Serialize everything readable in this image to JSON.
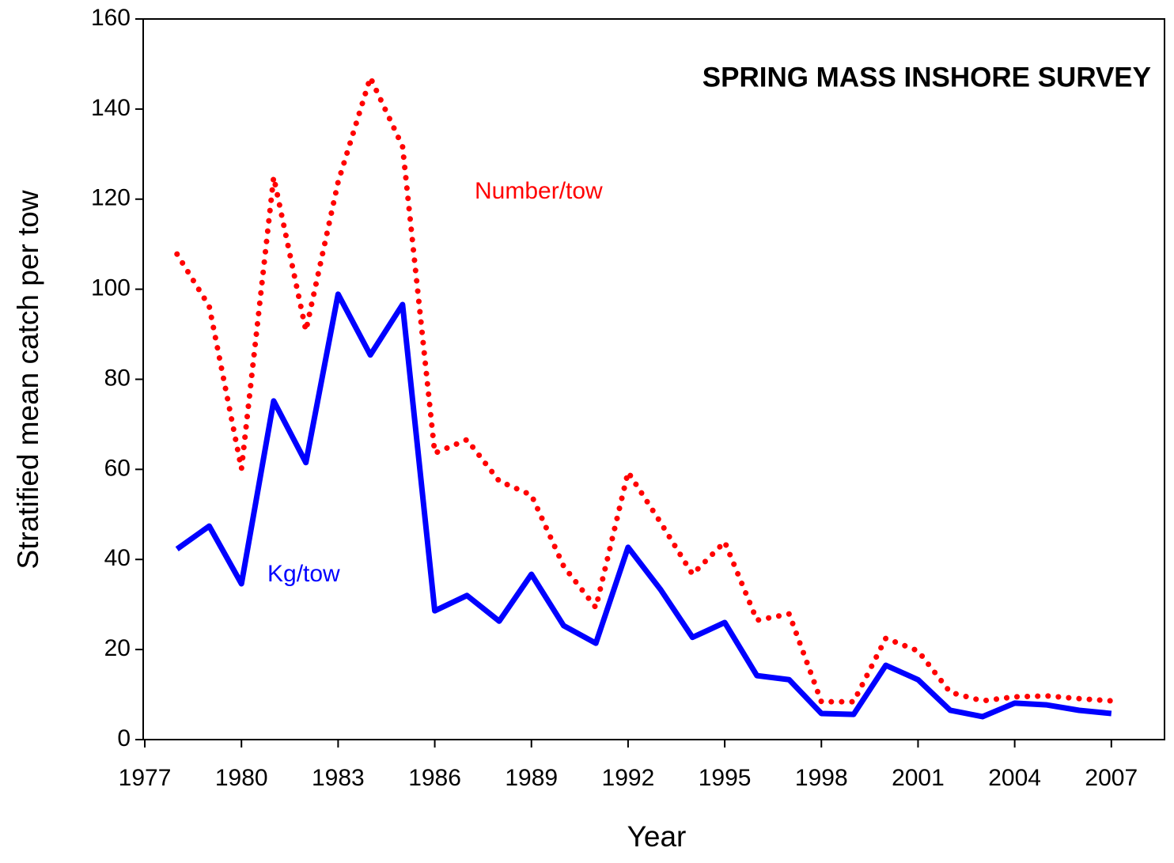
{
  "chart_data": {
    "type": "line",
    "title": "SPRING MASS INSHORE SURVEY",
    "x_label": "Year",
    "y_label": "Stratified mean catch per tow",
    "x": [
      1978,
      1979,
      1980,
      1981,
      1982,
      1983,
      1984,
      1985,
      1986,
      1987,
      1988,
      1989,
      1990,
      1991,
      1992,
      1993,
      1994,
      1995,
      1996,
      1997,
      1998,
      1999,
      2000,
      2001,
      2002,
      2003,
      2004,
      2005,
      2006,
      2007
    ],
    "series": [
      {
        "name": "Number/tow",
        "color": "#ff0000",
        "style": "dotted",
        "values": [
          107.8,
          96.2,
          60.1,
          124.9,
          90.8,
          123.8,
          147.0,
          131.7,
          63.6,
          66.6,
          57.4,
          54.3,
          38.5,
          29.3,
          59.4,
          48.3,
          36.7,
          43.9,
          26.5,
          27.9,
          8.4,
          8.4,
          22.5,
          19.7,
          10.5,
          8.6,
          9.5,
          9.7,
          9.1,
          8.6
        ]
      },
      {
        "name": "Kg/tow",
        "color": "#0000ff",
        "style": "solid",
        "values": [
          42.3,
          47.4,
          34.6,
          75.2,
          61.5,
          98.9,
          85.4,
          96.6,
          28.6,
          32.0,
          26.3,
          36.7,
          25.3,
          21.4,
          42.7,
          33.4,
          22.7,
          26.0,
          14.2,
          13.3,
          5.8,
          5.6,
          16.5,
          13.3,
          6.5,
          5.1,
          8.1,
          7.7,
          6.5,
          5.8
        ]
      }
    ],
    "xlim": [
      1976.95,
      2008.65
    ],
    "xticks": [
      1977,
      1980,
      1983,
      1986,
      1989,
      1992,
      1995,
      1998,
      2001,
      2004,
      2007
    ],
    "ylim": [
      0,
      160
    ],
    "yticks": [
      0,
      20,
      40,
      60,
      80,
      100,
      120,
      140,
      160
    ],
    "grid": false
  }
}
